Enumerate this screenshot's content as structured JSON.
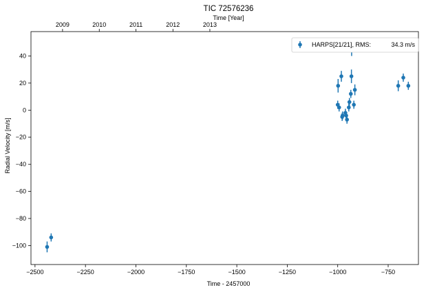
{
  "chart_data": {
    "type": "scatter",
    "title": "TIC 72576236",
    "xlabel": "Time - 2457000",
    "ylabel": "Radial Velocity [m/s]",
    "top_xlabel": "Time [Year]",
    "xlim": [
      -2520,
      -1800,
      -730,
      2550
    ],
    "xlim_data": [
      -2520,
      -600
    ],
    "ylim": [
      -114,
      58
    ],
    "x_ticks": [
      -2500,
      -2250,
      -2000,
      -1750,
      -1500,
      -1250,
      -1000,
      -750
    ],
    "x_tick_labels": [
      "−2500",
      "−2250",
      "−2000",
      "−1750",
      "−1500",
      "−1250",
      "−1000",
      "−750"
    ],
    "y_ticks": [
      40,
      20,
      0,
      -20,
      -40,
      -60,
      -80,
      -100
    ],
    "y_tick_labels": [
      "40",
      "20",
      "0",
      "−20",
      "−40",
      "−60",
      "−80",
      "−100"
    ],
    "top_ticks": [
      -2363.5,
      -2179.5,
      -1997.5,
      -1814.5,
      -1631.5
    ],
    "top_tick_values": [
      -2363.5,
      -2181.5,
      -1999.5,
      -1816.5,
      -1633.5
    ],
    "top_tick_labels": [
      "2009",
      "2010",
      "2011",
      "2012",
      "2013"
    ],
    "grid": false,
    "legend": {
      "position": "top-right",
      "label": "HARPS[21/21], RMS:",
      "rms": "34.3 m/s"
    },
    "colors": {
      "series": "#1f77b4"
    },
    "series": [
      {
        "name": "HARPS[21/21]",
        "points": [
          {
            "x": -2440,
            "y": -101,
            "err": 4
          },
          {
            "x": -2420,
            "y": -94,
            "err": 3
          },
          {
            "x": -1000,
            "y": 4,
            "err": 3
          },
          {
            "x": -998,
            "y": 18,
            "err": 5
          },
          {
            "x": -993,
            "y": 2,
            "err": 3
          },
          {
            "x": -982,
            "y": 25,
            "err": 4
          },
          {
            "x": -978,
            "y": -5,
            "err": 3
          },
          {
            "x": -976,
            "y": -4,
            "err": 3
          },
          {
            "x": -962,
            "y": -2,
            "err": 3
          },
          {
            "x": -958,
            "y": -4,
            "err": 3
          },
          {
            "x": -954,
            "y": -7,
            "err": 3
          },
          {
            "x": -945,
            "y": 2,
            "err": 3
          },
          {
            "x": -942,
            "y": 6,
            "err": 3
          },
          {
            "x": -935,
            "y": 12,
            "err": 3
          },
          {
            "x": -932,
            "y": 25,
            "err": 5
          },
          {
            "x": -931,
            "y": 45,
            "err": 5
          },
          {
            "x": -920,
            "y": 4,
            "err": 3
          },
          {
            "x": -915,
            "y": 15,
            "err": 4
          },
          {
            "x": -700,
            "y": 18,
            "err": 4
          },
          {
            "x": -675,
            "y": 24,
            "err": 3
          },
          {
            "x": -650,
            "y": 18,
            "err": 3
          }
        ]
      }
    ]
  }
}
